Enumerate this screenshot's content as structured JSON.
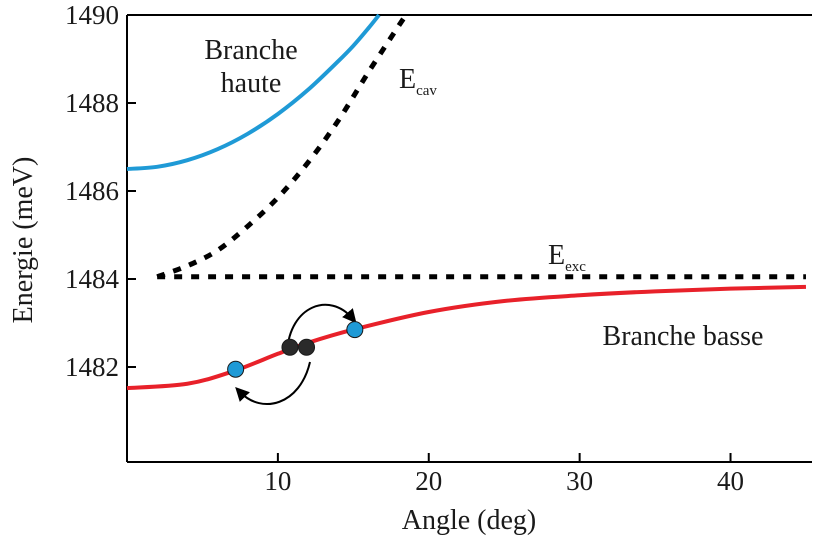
{
  "chart_data": {
    "type": "line",
    "title": "",
    "xlabel": "Angle (deg)",
    "ylabel": "Energie (meV)",
    "xlim": [
      0,
      45
    ],
    "ylim": [
      1480,
      1490
    ],
    "x_ticks": [
      10,
      20,
      30,
      40
    ],
    "y_ticks": [
      1482,
      1484,
      1486,
      1488,
      1490
    ],
    "grid": false,
    "legend": "none",
    "series": [
      {
        "label": "Branche haute",
        "color": "#1f9ad6",
        "style": "solid",
        "x": [
          0,
          2,
          4,
          6,
          8,
          10,
          12,
          14,
          15,
          16,
          16.7
        ],
        "y": [
          1486.5,
          1486.55,
          1486.7,
          1486.95,
          1487.3,
          1487.75,
          1488.3,
          1488.95,
          1489.3,
          1489.7,
          1490
        ]
      },
      {
        "label": "E",
        "label_sub": "cav",
        "color": "#000000",
        "style": "dotted",
        "x": [
          2,
          4,
          6,
          8,
          10,
          12,
          14,
          16,
          18,
          18.5
        ],
        "y": [
          1484.05,
          1484.3,
          1484.65,
          1485.2,
          1485.85,
          1486.65,
          1487.6,
          1488.7,
          1489.75,
          1490
        ]
      },
      {
        "label": "E",
        "label_sub": "exc",
        "color": "#000000",
        "style": "dotted",
        "x": [
          2,
          45
        ],
        "y": [
          1484.05,
          1484.05
        ]
      },
      {
        "label": "Branche basse",
        "color": "#e8212a",
        "style": "solid",
        "x": [
          0,
          4,
          7,
          10,
          12,
          15,
          20,
          25,
          30,
          35,
          40,
          45
        ],
        "y": [
          1481.52,
          1481.62,
          1481.9,
          1482.3,
          1482.55,
          1482.85,
          1483.25,
          1483.5,
          1483.63,
          1483.72,
          1483.78,
          1483.82
        ]
      }
    ],
    "markers": [
      {
        "x": 7.2,
        "y": 1481.95,
        "color": "#1f9ad6"
      },
      {
        "x": 10.8,
        "y": 1482.45,
        "color": "#2a2a2a"
      },
      {
        "x": 11.9,
        "y": 1482.45,
        "color": "#2a2a2a"
      },
      {
        "x": 15.1,
        "y": 1482.85,
        "color": "#1f9ad6"
      }
    ]
  }
}
